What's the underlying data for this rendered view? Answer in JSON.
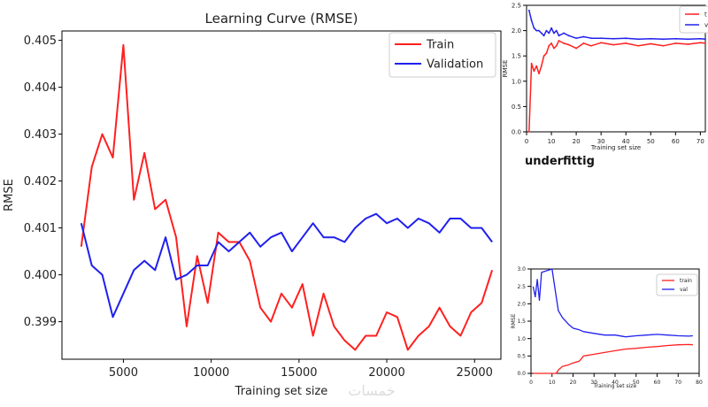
{
  "chart_data": [
    {
      "type": "line",
      "title": "Learning Curve (RMSE)",
      "xlabel": "Training set size",
      "ylabel": "RMSE",
      "xlim": [
        1500,
        26500
      ],
      "ylim": [
        0.3982,
        0.4052
      ],
      "xticks": [
        "5000",
        "10000",
        "15000",
        "20000",
        "25000"
      ],
      "yticks": [
        "0.399",
        "0.400",
        "0.401",
        "0.402",
        "0.403",
        "0.404",
        "0.405"
      ],
      "legend_position": "top-right",
      "x": [
        2600,
        3200,
        3800,
        4400,
        5000,
        5600,
        6200,
        6800,
        7400,
        8000,
        8600,
        9200,
        9800,
        10400,
        11000,
        11600,
        12200,
        12800,
        13400,
        14000,
        14600,
        15200,
        15800,
        16400,
        17000,
        17600,
        18200,
        18800,
        19400,
        20000,
        20600,
        21200,
        21800,
        22400,
        23000,
        23600,
        24200,
        24800,
        25400,
        26000
      ],
      "series": [
        {
          "name": "Train",
          "color": "#ff2020",
          "values": [
            0.4006,
            0.4023,
            0.403,
            0.4025,
            0.4049,
            0.4016,
            0.4026,
            0.4014,
            0.4016,
            0.4008,
            0.3989,
            0.4004,
            0.3994,
            0.4009,
            0.4007,
            0.4007,
            0.4003,
            0.3993,
            0.399,
            0.3996,
            0.3993,
            0.3998,
            0.3987,
            0.3996,
            0.3989,
            0.3986,
            0.3984,
            0.3987,
            0.3987,
            0.3992,
            0.3991,
            0.3984,
            0.3987,
            0.3989,
            0.3993,
            0.3989,
            0.3987,
            0.3992,
            0.3994,
            0.4001
          ]
        },
        {
          "name": "Validation",
          "color": "#2020ee",
          "values": [
            0.4011,
            0.4002,
            0.4,
            0.3991,
            0.3996,
            0.4001,
            0.4003,
            0.4001,
            0.4008,
            0.3999,
            0.4,
            0.4002,
            0.4002,
            0.4007,
            0.4005,
            0.4007,
            0.4009,
            0.4006,
            0.4008,
            0.4009,
            0.4005,
            0.4008,
            0.4011,
            0.4008,
            0.4008,
            0.4007,
            0.401,
            0.4012,
            0.4013,
            0.4011,
            0.4012,
            0.401,
            0.4012,
            0.4011,
            0.4009,
            0.4012,
            0.4012,
            0.401,
            0.401,
            0.4007
          ]
        }
      ],
      "watermark": "خمسات"
    },
    {
      "type": "line",
      "title": "",
      "xlabel": "Training set size",
      "ylabel": "RMSE",
      "xlim": [
        0,
        72
      ],
      "ylim": [
        0,
        2.5
      ],
      "xticks": [
        "0",
        "10",
        "20",
        "30",
        "40",
        "50",
        "60",
        "70"
      ],
      "yticks": [
        "0.0",
        "0.5",
        "1.0",
        "1.5",
        "2.0",
        "2.5"
      ],
      "legend_position": "top-right",
      "legend_entries": [
        "t",
        "v"
      ],
      "x": [
        1,
        2,
        3,
        4,
        5,
        6,
        7,
        8,
        9,
        10,
        11,
        12,
        13,
        15,
        17,
        20,
        23,
        26,
        30,
        35,
        40,
        45,
        50,
        55,
        60,
        65,
        70,
        72
      ],
      "series": [
        {
          "name": "t",
          "color": "#ff2020",
          "values": [
            0.0,
            1.35,
            1.2,
            1.3,
            1.15,
            1.3,
            1.5,
            1.55,
            1.7,
            1.75,
            1.65,
            1.7,
            1.8,
            1.75,
            1.72,
            1.65,
            1.75,
            1.7,
            1.76,
            1.72,
            1.75,
            1.7,
            1.74,
            1.7,
            1.75,
            1.73,
            1.76,
            1.75
          ]
        },
        {
          "name": "v",
          "color": "#2020ee",
          "values": [
            2.4,
            2.2,
            2.05,
            2.0,
            2.0,
            1.95,
            1.9,
            2.0,
            1.95,
            2.05,
            1.95,
            2.0,
            1.9,
            1.95,
            1.9,
            1.85,
            1.88,
            1.85,
            1.85,
            1.84,
            1.85,
            1.83,
            1.84,
            1.83,
            1.84,
            1.83,
            1.84,
            1.83
          ]
        }
      ],
      "caption": "underfittig"
    },
    {
      "type": "line",
      "title": "",
      "xlabel": "Training set size",
      "ylabel": "RMSE",
      "xlim": [
        0,
        80
      ],
      "ylim": [
        0,
        3.0
      ],
      "xticks": [
        "0",
        "10",
        "20",
        "30",
        "40",
        "50",
        "60",
        "70",
        "80"
      ],
      "yticks": [
        "0.0",
        "0.5",
        "1.0",
        "1.5",
        "2.0",
        "2.5",
        "3.0"
      ],
      "legend_position": "top-right",
      "legend_entries": [
        "train",
        "val"
      ],
      "x": [
        1,
        2,
        3,
        4,
        5,
        10,
        12,
        13,
        15,
        18,
        20,
        23,
        25,
        30,
        35,
        40,
        45,
        50,
        55,
        60,
        65,
        70,
        75,
        77
      ],
      "series": [
        {
          "name": "train",
          "color": "#ff2020",
          "values": [
            0.0,
            0.0,
            0.0,
            0.0,
            0.0,
            0.0,
            0.0,
            0.1,
            0.2,
            0.25,
            0.3,
            0.35,
            0.5,
            0.55,
            0.6,
            0.65,
            0.7,
            0.72,
            0.75,
            0.77,
            0.8,
            0.82,
            0.83,
            0.82
          ]
        },
        {
          "name": "val",
          "color": "#2020ee",
          "values": [
            2.5,
            2.2,
            2.7,
            2.1,
            2.9,
            3.0,
            2.2,
            1.8,
            1.6,
            1.4,
            1.3,
            1.25,
            1.2,
            1.15,
            1.1,
            1.1,
            1.05,
            1.08,
            1.1,
            1.12,
            1.1,
            1.08,
            1.07,
            1.08
          ]
        }
      ]
    }
  ]
}
